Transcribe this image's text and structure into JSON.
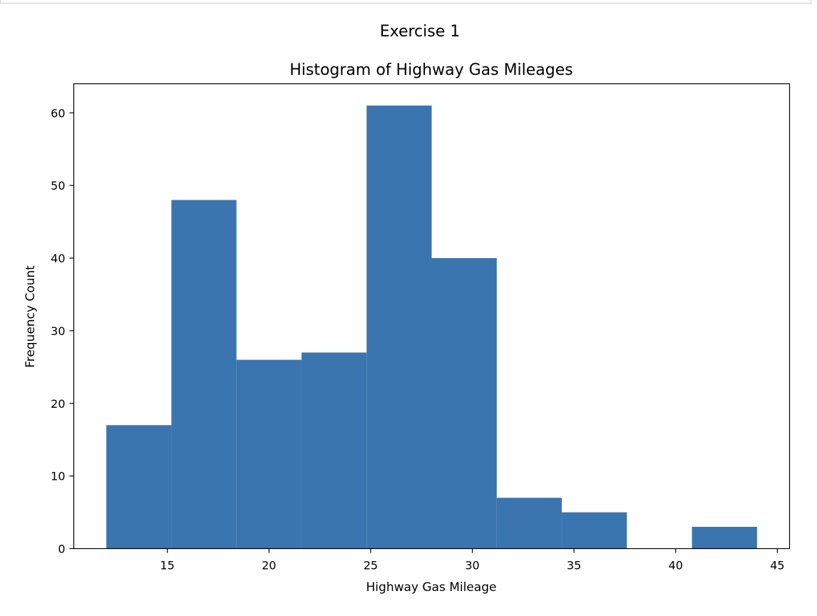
{
  "figure": {
    "suptitle": "Exercise 1"
  },
  "chart_data": {
    "type": "bar",
    "title": "Histogram of Highway Gas Mileages",
    "xlabel": "Highway Gas Mileage",
    "ylabel": "Frequency Count",
    "bin_edges": [
      12,
      15.2,
      18.4,
      21.6,
      24.8,
      28,
      31.2,
      34.4,
      37.6,
      40.8,
      44
    ],
    "values": [
      17,
      48,
      26,
      27,
      61,
      40,
      7,
      5,
      0,
      3
    ],
    "xlim": [
      10.4,
      45.6
    ],
    "ylim": [
      0,
      64
    ],
    "xticks": [
      15,
      20,
      25,
      30,
      35,
      40,
      45
    ],
    "yticks": [
      0,
      10,
      20,
      30,
      40,
      50,
      60
    ],
    "bar_color": "#3b75af",
    "grid": false,
    "legend": "none"
  }
}
